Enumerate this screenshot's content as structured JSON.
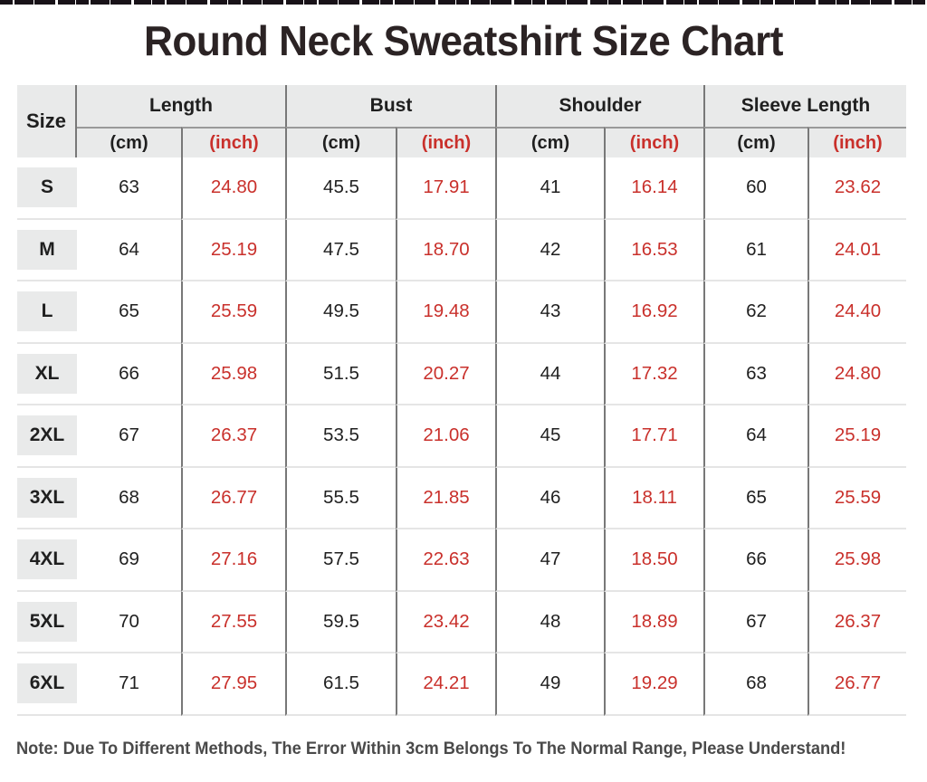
{
  "colors": {
    "accent_red": "#c9302b",
    "header_background": "#e9eaea",
    "grid_dark_line": "#787878",
    "grid_light_line": "#e5e5e5",
    "title_color": "#2b2324"
  },
  "table_header": {
    "corner": "Size",
    "groups": [
      "Length",
      "Bust",
      "Shoulder",
      "Sleeve Length"
    ],
    "unit_cm": "(cm)",
    "unit_inch": "(inch)"
  },
  "chart_data": {
    "type": "table",
    "title": "Round Neck Sweatshirt Size Chart",
    "column_groups": [
      "Size",
      "Length",
      "Bust",
      "Shoulder",
      "Sleeve Length"
    ],
    "columns": [
      "Size",
      "Length (cm)",
      "Length (inch)",
      "Bust (cm)",
      "Bust (inch)",
      "Shoulder (cm)",
      "Shoulder (inch)",
      "Sleeve Length (cm)",
      "Sleeve Length (inch)"
    ],
    "rows": [
      [
        "S",
        "63",
        "24.80",
        "45.5",
        "17.91",
        "41",
        "16.14",
        "60",
        "23.62"
      ],
      [
        "M",
        "64",
        "25.19",
        "47.5",
        "18.70",
        "42",
        "16.53",
        "61",
        "24.01"
      ],
      [
        "L",
        "65",
        "25.59",
        "49.5",
        "19.48",
        "43",
        "16.92",
        "62",
        "24.40"
      ],
      [
        "XL",
        "66",
        "25.98",
        "51.5",
        "20.27",
        "44",
        "17.32",
        "63",
        "24.80"
      ],
      [
        "2XL",
        "67",
        "26.37",
        "53.5",
        "21.06",
        "45",
        "17.71",
        "64",
        "25.19"
      ],
      [
        "3XL",
        "68",
        "26.77",
        "55.5",
        "21.85",
        "46",
        "18.11",
        "65",
        "25.59"
      ],
      [
        "4XL",
        "69",
        "27.16",
        "57.5",
        "22.63",
        "47",
        "18.50",
        "66",
        "25.98"
      ],
      [
        "5XL",
        "70",
        "27.55",
        "59.5",
        "23.42",
        "48",
        "18.89",
        "67",
        "26.37"
      ],
      [
        "6XL",
        "71",
        "27.95",
        "61.5",
        "24.21",
        "49",
        "19.29",
        "68",
        "26.77"
      ]
    ],
    "note": "Note: Due To Different Methods, The Error Within 3cm Belongs To The Normal Range, Please Understand!"
  }
}
